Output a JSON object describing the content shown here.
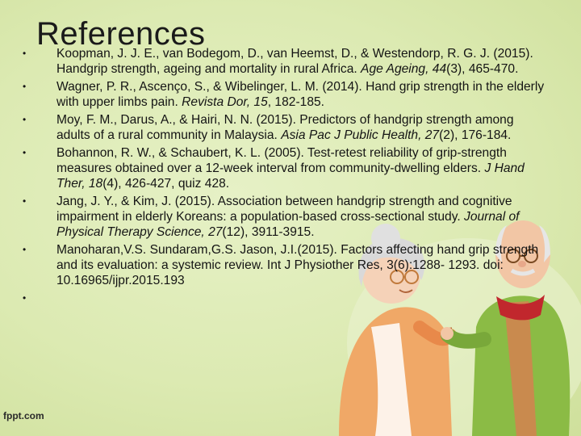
{
  "slide": {
    "title": "References",
    "references": [
      {
        "pre": "Koopman, J. J. E., van Bodegom, D., van Heemst, D., & Westendorp, R. G. J. (2015). Handgrip strength, ageing and mortality in rural Africa. ",
        "journal": "Age Ageing, 44",
        "post": "(3), 465-470."
      },
      {
        "pre": "Wagner, P. R., Ascenço, S., & Wibelinger, L. M. (2014). Hand grip strength in the elderly with upper limbs pain. ",
        "journal": "Revista Dor, 15",
        "post": ", 182-185."
      },
      {
        "pre": "Moy, F. M., Darus, A., & Hairi, N. N. (2015). Predictors of handgrip strength among adults of a rural community in Malaysia. ",
        "journal": "Asia Pac J Public Health, 27",
        "post": "(2), 176-184."
      },
      {
        "pre": "Bohannon, R. W., & Schaubert, K. L. (2005). Test-retest reliability of grip-strength measures obtained over a 12-week interval from community-dwelling elders. ",
        "journal": "J Hand Ther, 18",
        "post": "(4), 426-427, quiz 428."
      },
      {
        "pre": "Jang, J. Y., & Kim, J. (2015). Association between handgrip strength and cognitive impairment in elderly Koreans: a population-based cross-sectional study. ",
        "journal": "Journal of Physical Therapy Science, 27",
        "post": "(12), 3911-3915."
      },
      {
        "pre": "Manoharan,V.S. Sundaram,G.S.  Jason, J.I.(2015). Factors affecting hand grip strength and its evaluation: a systemic review. Int J Physiother Res, 3(6):1288- 1293. doi: 10.16965/ijpr.2015.193",
        "journal": "",
        "post": ""
      }
    ],
    "bullet": "•"
  },
  "footer": {
    "logo": "fppt.com"
  }
}
